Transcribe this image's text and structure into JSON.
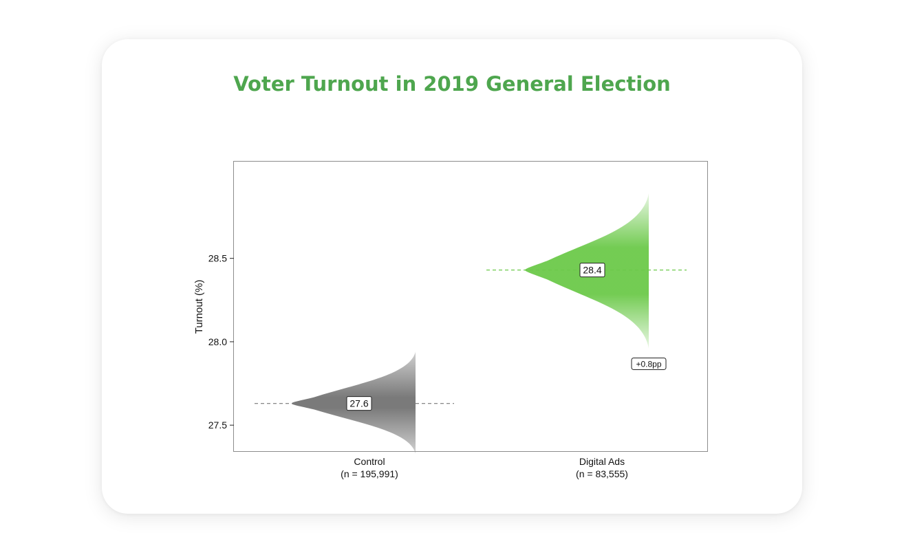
{
  "chart_data": {
    "type": "distribution",
    "title": "Voter Turnout in 2019 General Election",
    "ylabel": "Turnout (%)",
    "xlabel": "",
    "ylim": [
      27.34,
      29.08
    ],
    "yticks": [
      27.5,
      28.0,
      28.5
    ],
    "ytick_labels": [
      "27.5",
      "28.0",
      "28.5"
    ],
    "grid": false,
    "categories": [
      "Control",
      "Digital Ads"
    ],
    "category_sublabels": [
      "(n = 195,991)",
      "(n = 83,555)"
    ],
    "series": [
      {
        "category": "Control",
        "mean": 27.63,
        "mean_label": "27.6",
        "range": [
          27.33,
          27.94
        ],
        "color": "#7a7a7a"
      },
      {
        "category": "Digital Ads",
        "mean": 28.43,
        "mean_label": "28.4",
        "range": [
          27.96,
          28.89
        ],
        "color": "#6cc94a"
      }
    ],
    "annotations": [
      {
        "text": "+0.8pp",
        "category": "Digital Ads",
        "y": 27.87
      }
    ]
  },
  "colors": {
    "title": "#4ea64e",
    "control": "#7a7a7a",
    "digital_ads": "#6cc94a",
    "control_line": "#777777",
    "digital_line": "#6cc94a"
  }
}
